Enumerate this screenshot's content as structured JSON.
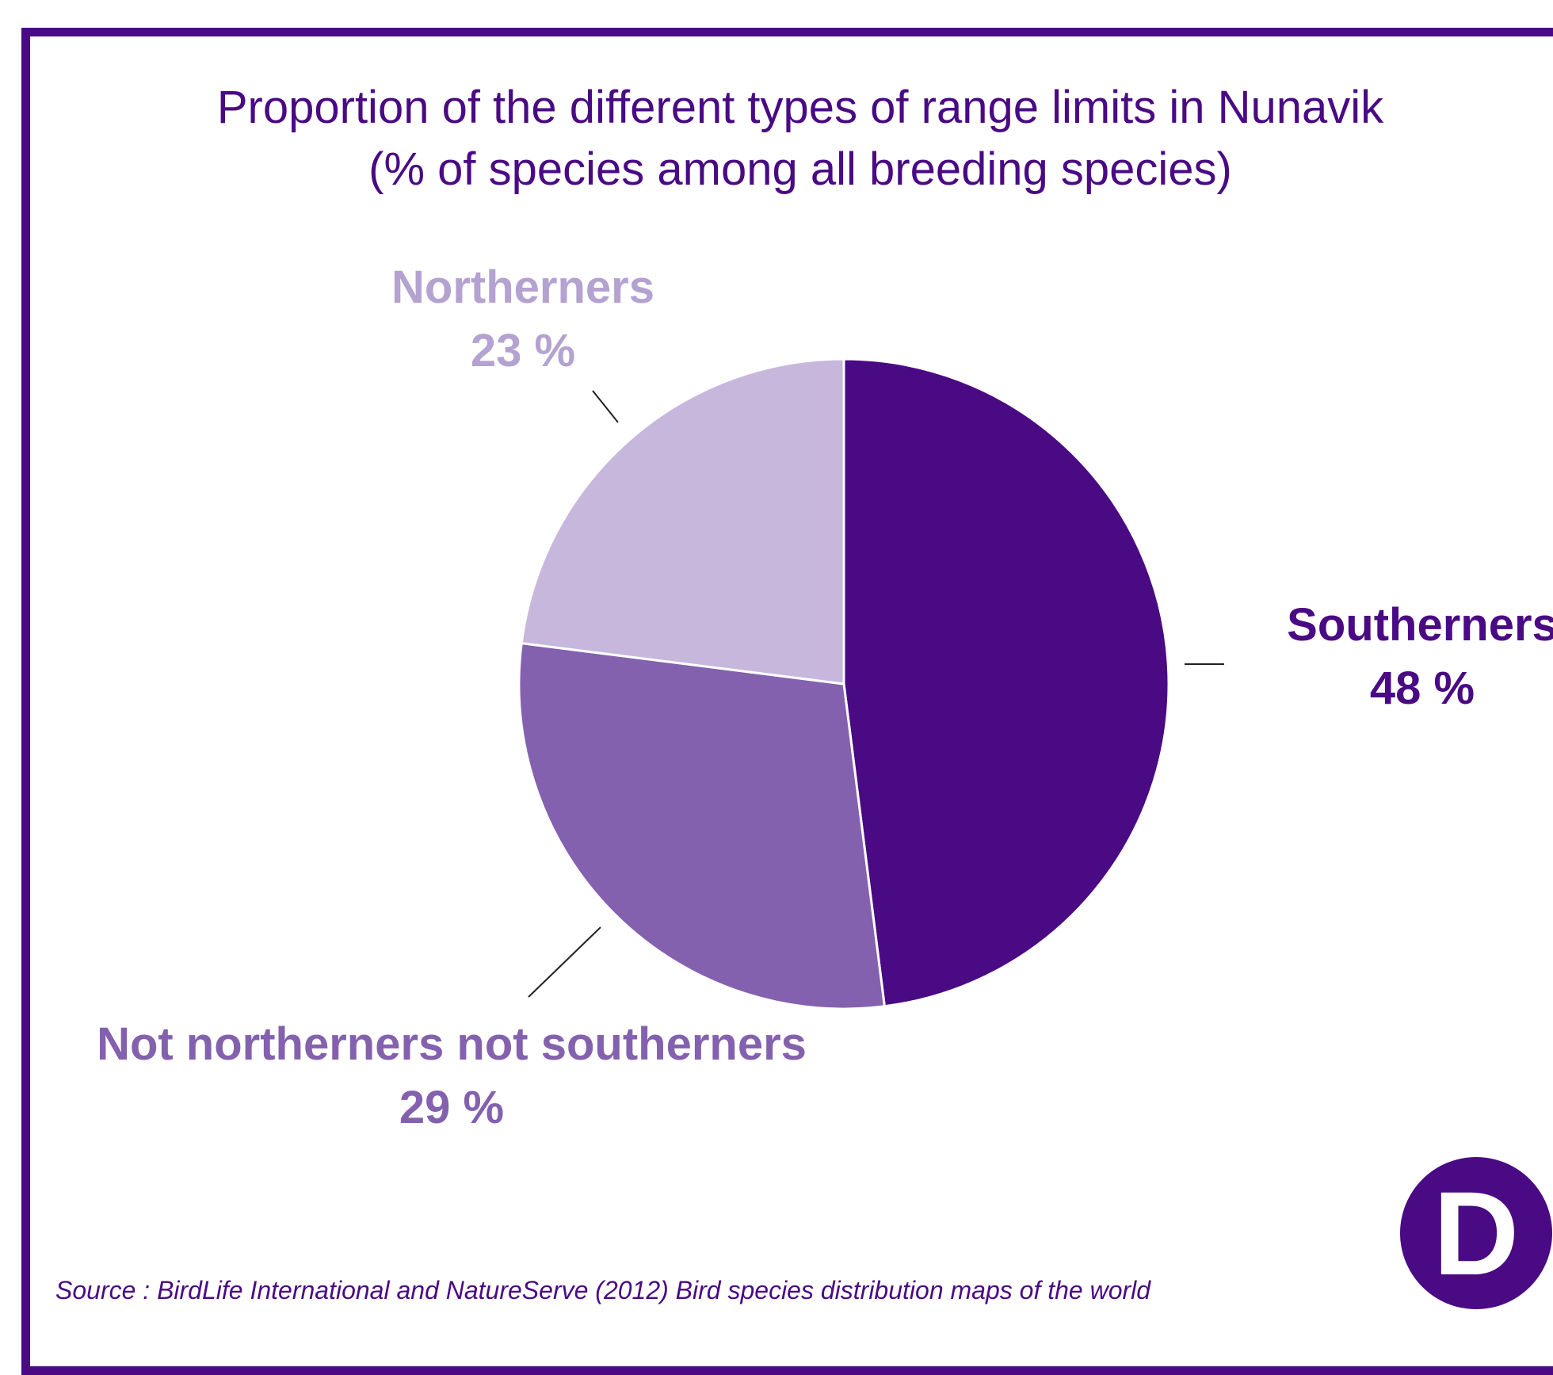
{
  "chart_data": {
    "type": "pie",
    "title": "Proportion of the different types of range limits in Nunavik",
    "subtitle": "(% of species among all breeding species)",
    "slices": [
      {
        "name": "Southerners",
        "value": 48,
        "label": "48 %",
        "color": "#4a0a84",
        "text_color": "#4a0a84"
      },
      {
        "name": "Not northerners not southerners",
        "value": 29,
        "label": "29 %",
        "color": "#8461ae",
        "text_color": "#8461ae"
      },
      {
        "name": "Northerners",
        "value": 23,
        "label": "23 %",
        "color": "#c8b7dd",
        "text_color": "#b4a2d0"
      }
    ]
  },
  "source": "Source : BirdLife International and NatureServe (2012) Bird species distribution maps of the world",
  "logo_letter": "D",
  "colors": {
    "accent": "#4a0a84"
  }
}
